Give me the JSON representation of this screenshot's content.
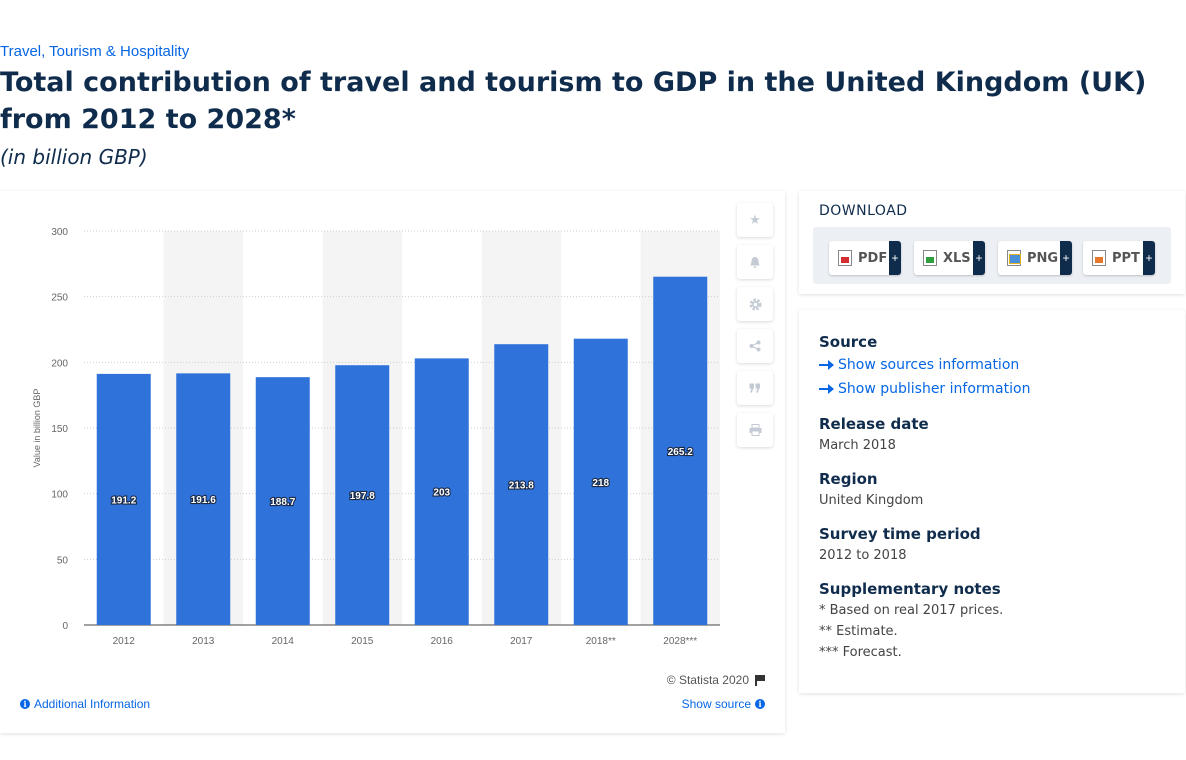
{
  "breadcrumb": "Travel, Tourism & Hospitality",
  "title": "Total contribution of travel and tourism to GDP in the United Kingdom (UK) from 2012 to 2028*",
  "subtitle": "(in billion GBP)",
  "chart_data": {
    "type": "bar",
    "categories": [
      "2012",
      "2013",
      "2014",
      "2015",
      "2016",
      "2017",
      "2018**",
      "2028***"
    ],
    "values": [
      191.2,
      191.6,
      188.7,
      197.8,
      203,
      213.8,
      218,
      265.2
    ],
    "ylabel": "Value in billion GBP",
    "ylim": [
      0,
      300
    ],
    "yticks": [
      0,
      50,
      100,
      150,
      200,
      250,
      300
    ],
    "bar_color": "#2f72da",
    "grid": true,
    "data_labels": true
  },
  "footer": {
    "copyright": "© Statista 2020",
    "additional_info": "Additional Information",
    "show_source": "Show source"
  },
  "tools": [
    "star-icon",
    "bell-icon",
    "gear-icon",
    "share-icon",
    "quote-icon",
    "print-icon"
  ],
  "download": {
    "title": "DOWNLOAD",
    "buttons": [
      {
        "label": "PDF",
        "icon": "pdf-icon"
      },
      {
        "label": "XLS",
        "icon": "xls-icon"
      },
      {
        "label": "PNG",
        "icon": "png-icon"
      },
      {
        "label": "PPT",
        "icon": "ppt-icon"
      }
    ],
    "plus": "+"
  },
  "info": {
    "source_label": "Source",
    "show_sources": "Show sources information",
    "show_publisher": "Show publisher information",
    "release_label": "Release date",
    "release_value": "March 2018",
    "region_label": "Region",
    "region_value": "United Kingdom",
    "survey_label": "Survey time period",
    "survey_value": "2012 to 2018",
    "notes_label": "Supplementary notes",
    "notes": [
      "* Based on real 2017 prices.",
      "** Estimate.",
      "*** Forecast."
    ]
  }
}
